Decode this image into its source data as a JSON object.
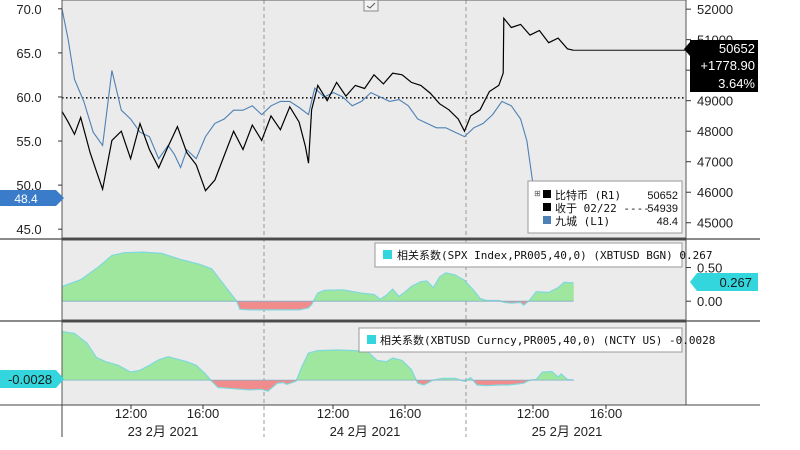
{
  "colors": {
    "background": "#ffffff",
    "panel_bg": "#ebebeb",
    "bitcoin_line": "#000000",
    "jiucheng_line": "#4d81b5",
    "axis_badge_blue": "#3a7cc9",
    "corr_positive": "#9fe79f",
    "corr_negative": "#f08c8c",
    "corr_outline": "#7fd8dc",
    "legend_cyan": "#33d6dc"
  },
  "chart_data": [
    {
      "type": "line",
      "name_zh": "price panel",
      "x_ticks": [
        "12:00",
        "16:00",
        "12:00",
        "16:00",
        "12:00",
        "16:00"
      ],
      "date_labels": [
        "23 2月 2021",
        "24 2月 2021",
        "25 2月 2021"
      ],
      "left_axis": {
        "ticks": [
          "70.0",
          "65.0",
          "60.0",
          "55.0",
          "50.0",
          "45.0"
        ],
        "ylim": [
          44,
          71
        ],
        "badge": "48.4"
      },
      "right_axis": {
        "ticks": [
          "52000",
          "51000",
          "50000",
          "49000",
          "48000",
          "47000",
          "46000",
          "45000"
        ],
        "ylim": [
          44500,
          52300
        ]
      },
      "price_box": [
        "50652",
        "+1778.90",
        "3.64%"
      ],
      "reference_line": {
        "left_value": 59.9,
        "right_value": 48950
      },
      "legend": [
        {
          "label": "比特币 (R1)",
          "value": "50652",
          "color": "#000000"
        },
        {
          "label": "收于 02/22 ----",
          "value": "54939",
          "color": "#000000"
        },
        {
          "label": "九城 (L1)",
          "value": "48.4",
          "color": "#4d81b5"
        }
      ],
      "series": [
        {
          "name": "比特币",
          "axis": "right",
          "points": [
            [
              0.0,
              48650
            ],
            [
              0.01,
              48300
            ],
            [
              0.02,
              47900
            ],
            [
              0.03,
              48450
            ],
            [
              0.045,
              47300
            ],
            [
              0.055,
              46700
            ],
            [
              0.065,
              46100
            ],
            [
              0.08,
              47700
            ],
            [
              0.095,
              48000
            ],
            [
              0.11,
              47100
            ],
            [
              0.125,
              48250
            ],
            [
              0.14,
              47400
            ],
            [
              0.155,
              46800
            ],
            [
              0.17,
              47500
            ],
            [
              0.185,
              48150
            ],
            [
              0.2,
              47300
            ],
            [
              0.215,
              46900
            ],
            [
              0.23,
              46050
            ],
            [
              0.245,
              46400
            ],
            [
              0.26,
              47200
            ],
            [
              0.275,
              48000
            ],
            [
              0.29,
              47400
            ],
            [
              0.305,
              48200
            ],
            [
              0.32,
              47700
            ],
            [
              0.335,
              48500
            ],
            [
              0.35,
              48050
            ],
            [
              0.365,
              48800
            ],
            [
              0.38,
              48300
            ],
            [
              0.39,
              47500
            ],
            [
              0.395,
              46950
            ],
            [
              0.4,
              48700
            ],
            [
              0.41,
              49500
            ],
            [
              0.425,
              49000
            ],
            [
              0.44,
              49600
            ],
            [
              0.455,
              49150
            ],
            [
              0.47,
              49500
            ],
            [
              0.485,
              49400
            ],
            [
              0.5,
              49850
            ],
            [
              0.515,
              49550
            ],
            [
              0.53,
              49900
            ],
            [
              0.545,
              49850
            ],
            [
              0.56,
              49600
            ],
            [
              0.575,
              49500
            ],
            [
              0.59,
              49250
            ],
            [
              0.605,
              48900
            ],
            [
              0.62,
              48700
            ],
            [
              0.635,
              48400
            ],
            [
              0.645,
              48000
            ],
            [
              0.655,
              48500
            ],
            [
              0.67,
              48700
            ],
            [
              0.685,
              49300
            ],
            [
              0.7,
              49500
            ],
            [
              0.707,
              49900
            ],
            [
              0.708,
              51700
            ],
            [
              0.72,
              51400
            ],
            [
              0.735,
              51500
            ],
            [
              0.75,
              51150
            ],
            [
              0.765,
              51300
            ],
            [
              0.78,
              50900
            ],
            [
              0.795,
              51050
            ],
            [
              0.81,
              50700
            ],
            [
              0.82,
              50652
            ]
          ]
        },
        {
          "name": "九城",
          "axis": "left",
          "points": [
            [
              0.0,
              70.0
            ],
            [
              0.01,
              66.5
            ],
            [
              0.02,
              62.0
            ],
            [
              0.035,
              59.5
            ],
            [
              0.05,
              56.0
            ],
            [
              0.065,
              54.5
            ],
            [
              0.08,
              63.0
            ],
            [
              0.095,
              58.5
            ],
            [
              0.11,
              57.5
            ],
            [
              0.125,
              56.0
            ],
            [
              0.14,
              55.5
            ],
            [
              0.155,
              53.0
            ],
            [
              0.17,
              54.5
            ],
            [
              0.18,
              53.5
            ],
            [
              0.19,
              52.0
            ],
            [
              0.2,
              54.0
            ],
            [
              0.215,
              53.0
            ],
            [
              0.23,
              55.5
            ],
            [
              0.245,
              57.0
            ],
            [
              0.26,
              57.5
            ],
            [
              0.275,
              58.5
            ],
            [
              0.29,
              58.5
            ],
            [
              0.305,
              59.0
            ],
            [
              0.32,
              58.0
            ],
            [
              0.335,
              59.0
            ],
            [
              0.35,
              59.5
            ],
            [
              0.365,
              59.5
            ],
            [
              0.38,
              58.8
            ],
            [
              0.395,
              58.0
            ],
            [
              0.405,
              61.0
            ],
            [
              0.42,
              60.0
            ],
            [
              0.435,
              60.5
            ],
            [
              0.45,
              60.0
            ],
            [
              0.465,
              59.0
            ],
            [
              0.48,
              59.5
            ],
            [
              0.495,
              60.5
            ],
            [
              0.51,
              60.0
            ],
            [
              0.525,
              59.5
            ],
            [
              0.54,
              59.7
            ],
            [
              0.555,
              59.0
            ],
            [
              0.57,
              57.5
            ],
            [
              0.585,
              57.0
            ],
            [
              0.6,
              56.5
            ],
            [
              0.615,
              56.5
            ],
            [
              0.63,
              56.0
            ],
            [
              0.645,
              55.5
            ],
            [
              0.66,
              56.5
            ],
            [
              0.675,
              57.0
            ],
            [
              0.69,
              58.0
            ],
            [
              0.705,
              59.5
            ],
            [
              0.72,
              59.0
            ],
            [
              0.735,
              57.5
            ],
            [
              0.745,
              55.0
            ],
            [
              0.755,
              50.0
            ],
            [
              0.76,
              47.0
            ],
            [
              0.77,
              49.0
            ],
            [
              0.78,
              48.0
            ],
            [
              0.79,
              48.8
            ],
            [
              0.8,
              48.2
            ],
            [
              0.81,
              48.6
            ],
            [
              0.82,
              48.4
            ]
          ]
        }
      ]
    },
    {
      "type": "area",
      "legend": "相关系数(SPX Index,PR005,40,0) (XBTUSD BGN) 0.267",
      "y_ticks": [
        "0.50",
        "0.00"
      ],
      "badge": "0.267",
      "ylim": [
        -0.22,
        0.82
      ],
      "values": [
        [
          0.0,
          0.22
        ],
        [
          0.03,
          0.32
        ],
        [
          0.06,
          0.52
        ],
        [
          0.08,
          0.68
        ],
        [
          0.1,
          0.72
        ],
        [
          0.13,
          0.73
        ],
        [
          0.16,
          0.71
        ],
        [
          0.19,
          0.62
        ],
        [
          0.22,
          0.55
        ],
        [
          0.24,
          0.48
        ],
        [
          0.25,
          0.36
        ],
        [
          0.265,
          0.18
        ],
        [
          0.28,
          0.0
        ],
        [
          0.285,
          -0.12
        ],
        [
          0.3,
          -0.13
        ],
        [
          0.34,
          -0.13
        ],
        [
          0.38,
          -0.13
        ],
        [
          0.395,
          -0.1
        ],
        [
          0.4,
          -0.05
        ],
        [
          0.41,
          0.12
        ],
        [
          0.42,
          0.16
        ],
        [
          0.45,
          0.17
        ],
        [
          0.48,
          0.12
        ],
        [
          0.5,
          0.1
        ],
        [
          0.51,
          0.03
        ],
        [
          0.52,
          0.09
        ],
        [
          0.53,
          0.18
        ],
        [
          0.54,
          0.07
        ],
        [
          0.55,
          0.14
        ],
        [
          0.56,
          0.22
        ],
        [
          0.575,
          0.29
        ],
        [
          0.585,
          0.3
        ],
        [
          0.595,
          0.2
        ],
        [
          0.605,
          0.36
        ],
        [
          0.615,
          0.42
        ],
        [
          0.63,
          0.39
        ],
        [
          0.645,
          0.31
        ],
        [
          0.66,
          0.16
        ],
        [
          0.67,
          0.04
        ],
        [
          0.68,
          0.01
        ],
        [
          0.7,
          0.01
        ],
        [
          0.71,
          -0.02
        ],
        [
          0.72,
          -0.03
        ],
        [
          0.735,
          -0.02
        ],
        [
          0.74,
          -0.06
        ],
        [
          0.75,
          0.02
        ],
        [
          0.76,
          0.14
        ],
        [
          0.78,
          0.13
        ],
        [
          0.795,
          0.2
        ],
        [
          0.805,
          0.28
        ],
        [
          0.82,
          0.27
        ]
      ]
    },
    {
      "type": "area",
      "legend": "相关系数(XBTUSD Curncy,PR005,40,0) (NCTY US) -0.0028",
      "badge": "-0.0028",
      "ylim": [
        -0.34,
        0.88
      ],
      "values": [
        [
          0.0,
          0.79
        ],
        [
          0.02,
          0.76
        ],
        [
          0.04,
          0.6
        ],
        [
          0.055,
          0.37
        ],
        [
          0.07,
          0.3
        ],
        [
          0.09,
          0.24
        ],
        [
          0.11,
          0.13
        ],
        [
          0.125,
          0.16
        ],
        [
          0.14,
          0.24
        ],
        [
          0.155,
          0.33
        ],
        [
          0.17,
          0.38
        ],
        [
          0.185,
          0.34
        ],
        [
          0.2,
          0.3
        ],
        [
          0.215,
          0.24
        ],
        [
          0.23,
          0.1
        ],
        [
          0.24,
          -0.02
        ],
        [
          0.25,
          -0.12
        ],
        [
          0.275,
          -0.14
        ],
        [
          0.3,
          -0.16
        ],
        [
          0.32,
          -0.15
        ],
        [
          0.33,
          -0.18
        ],
        [
          0.345,
          -0.05
        ],
        [
          0.355,
          -0.04
        ],
        [
          0.36,
          -0.07
        ],
        [
          0.375,
          -0.02
        ],
        [
          0.385,
          0.23
        ],
        [
          0.395,
          0.44
        ],
        [
          0.41,
          0.48
        ],
        [
          0.44,
          0.49
        ],
        [
          0.47,
          0.48
        ],
        [
          0.49,
          0.46
        ],
        [
          0.505,
          0.32
        ],
        [
          0.52,
          0.3
        ],
        [
          0.53,
          0.36
        ],
        [
          0.545,
          0.32
        ],
        [
          0.56,
          0.17
        ],
        [
          0.57,
          -0.05
        ],
        [
          0.58,
          -0.08
        ],
        [
          0.595,
          0.0
        ],
        [
          0.61,
          0.03
        ],
        [
          0.63,
          0.03
        ],
        [
          0.645,
          -0.02
        ],
        [
          0.655,
          0.04
        ],
        [
          0.665,
          -0.08
        ],
        [
          0.68,
          -0.09
        ],
        [
          0.7,
          -0.08
        ],
        [
          0.715,
          -0.08
        ],
        [
          0.725,
          -0.07
        ],
        [
          0.74,
          -0.05
        ],
        [
          0.75,
          0.0
        ],
        [
          0.76,
          0.01
        ],
        [
          0.77,
          0.13
        ],
        [
          0.785,
          0.14
        ],
        [
          0.795,
          0.05
        ],
        [
          0.8,
          0.1
        ],
        [
          0.81,
          0.01
        ],
        [
          0.82,
          0.0
        ]
      ]
    }
  ]
}
